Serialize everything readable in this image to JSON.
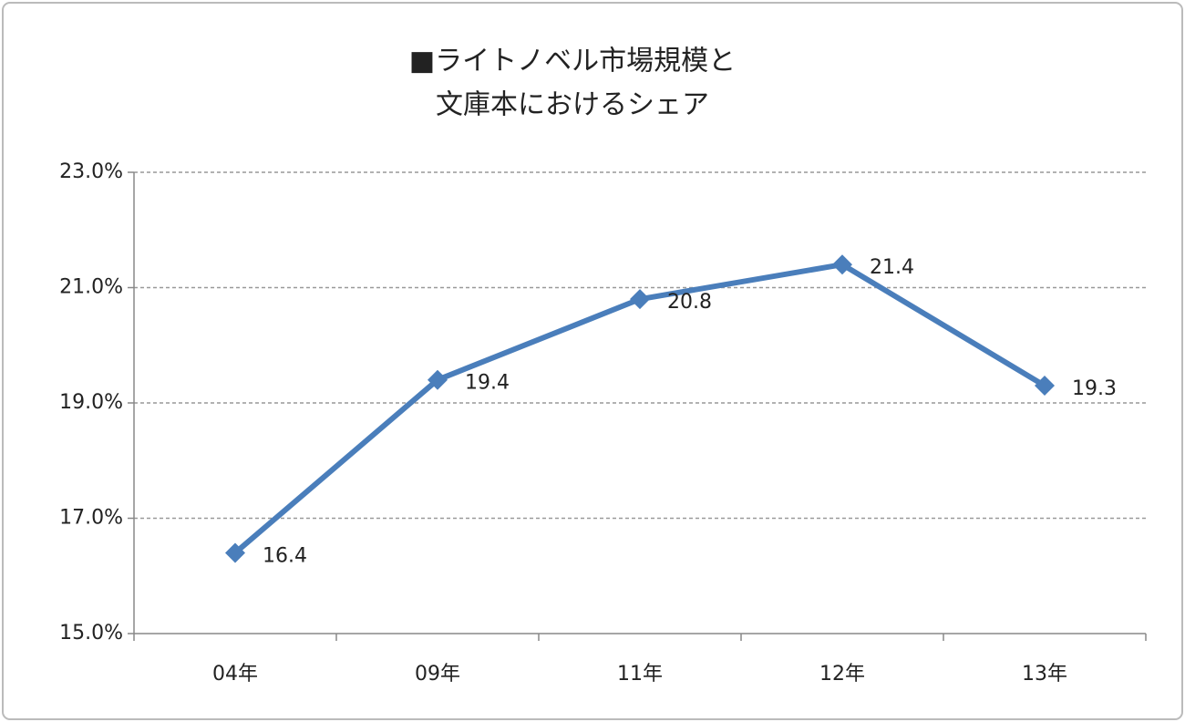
{
  "chart_data": {
    "type": "line",
    "title": [
      "■ライトノベル市場規模と",
      "文庫本におけるシェア"
    ],
    "categories": [
      "04年",
      "09年",
      "11年",
      "12年",
      "13年"
    ],
    "series": [
      {
        "color": "#4a7ebb",
        "values": [
          16.4,
          19.4,
          20.8,
          21.4,
          19.3
        ]
      }
    ],
    "ylim": [
      15,
      23
    ],
    "yticks": [
      {
        "value": 15,
        "label": "15.0%"
      },
      {
        "value": 17,
        "label": "17.0%"
      },
      {
        "value": 19,
        "label": "19.0%"
      },
      {
        "value": 21,
        "label": "21.0%"
      },
      {
        "value": 23,
        "label": "23.0%"
      }
    ],
    "grid": true
  }
}
